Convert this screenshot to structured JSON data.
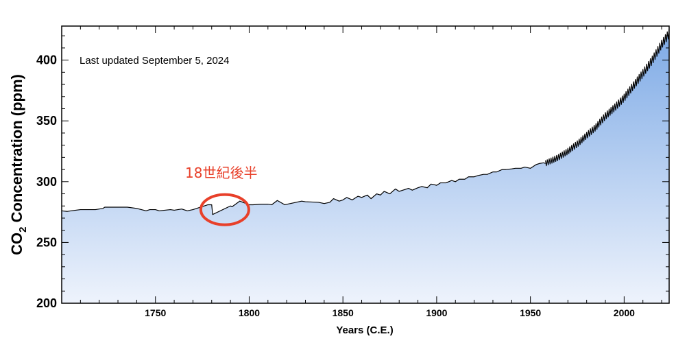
{
  "chart_data": {
    "type": "area",
    "xlabel": "Years (C.E.)",
    "ylabel_prefix": "CO",
    "ylabel_sub": "2",
    "ylabel_suffix": " Concentration (ppm)",
    "note": "Last updated September 5, 2024",
    "annotation": {
      "text": "18世紀後半",
      "x": 1787,
      "y": 277
    },
    "xlim": [
      1700,
      2024
    ],
    "ylim": [
      200,
      428
    ],
    "xticks": [
      1750,
      1800,
      1850,
      1900,
      1950,
      2000
    ],
    "yticks": [
      200,
      250,
      300,
      350,
      400
    ],
    "grid": false,
    "fill_color_top": "#7fabe6",
    "fill_color_bottom": "#eef3fc",
    "line_color": "#000000",
    "annotation_color": "#e8402a",
    "x": [
      1700,
      1703,
      1705,
      1710,
      1718,
      1722,
      1723,
      1735,
      1740,
      1745,
      1747,
      1750,
      1752,
      1755,
      1758,
      1760,
      1764,
      1767,
      1770,
      1778,
      1780,
      1780.5,
      1790,
      1791,
      1795,
      1800,
      1802,
      1806,
      1810,
      1812,
      1815,
      1819,
      1825,
      1828,
      1830,
      1837,
      1840,
      1843,
      1845,
      1848,
      1850,
      1852,
      1855,
      1858,
      1860,
      1863,
      1865,
      1868,
      1870,
      1872,
      1875,
      1878,
      1880,
      1882,
      1885,
      1887,
      1890,
      1892,
      1895,
      1897,
      1900,
      1902,
      1905,
      1908,
      1910,
      1912,
      1915,
      1917,
      1920,
      1922,
      1925,
      1927,
      1930,
      1932,
      1935,
      1937,
      1940,
      1942,
      1945,
      1947,
      1950,
      1953,
      1955,
      1957,
      1958,
      1960,
      1965,
      1970,
      1975,
      1980,
      1985,
      1990,
      1995,
      2000,
      2005,
      2010,
      2015,
      2020,
      2024
    ],
    "y": [
      276,
      275.5,
      276,
      277,
      277,
      278,
      279,
      279,
      278,
      276,
      277,
      277,
      276,
      276.5,
      277,
      276.5,
      277.5,
      276,
      277,
      281,
      281,
      273,
      280,
      279.5,
      284,
      281,
      281,
      281.5,
      281.5,
      281,
      284.5,
      281,
      283,
      284,
      283.5,
      283,
      282,
      283,
      286,
      284,
      285,
      287,
      285,
      288,
      287,
      289,
      286,
      290,
      289,
      292,
      290,
      294,
      292,
      293,
      294.5,
      293,
      295,
      296,
      295,
      298,
      297,
      299,
      299,
      301,
      300,
      302,
      302,
      304,
      304,
      305,
      306,
      306,
      308,
      308,
      310,
      310,
      310.5,
      311,
      311,
      312,
      311,
      314,
      315,
      315.5,
      315,
      316.5,
      320,
      325,
      331,
      338,
      345,
      354,
      361,
      369,
      379,
      389,
      400,
      413,
      422
    ]
  }
}
